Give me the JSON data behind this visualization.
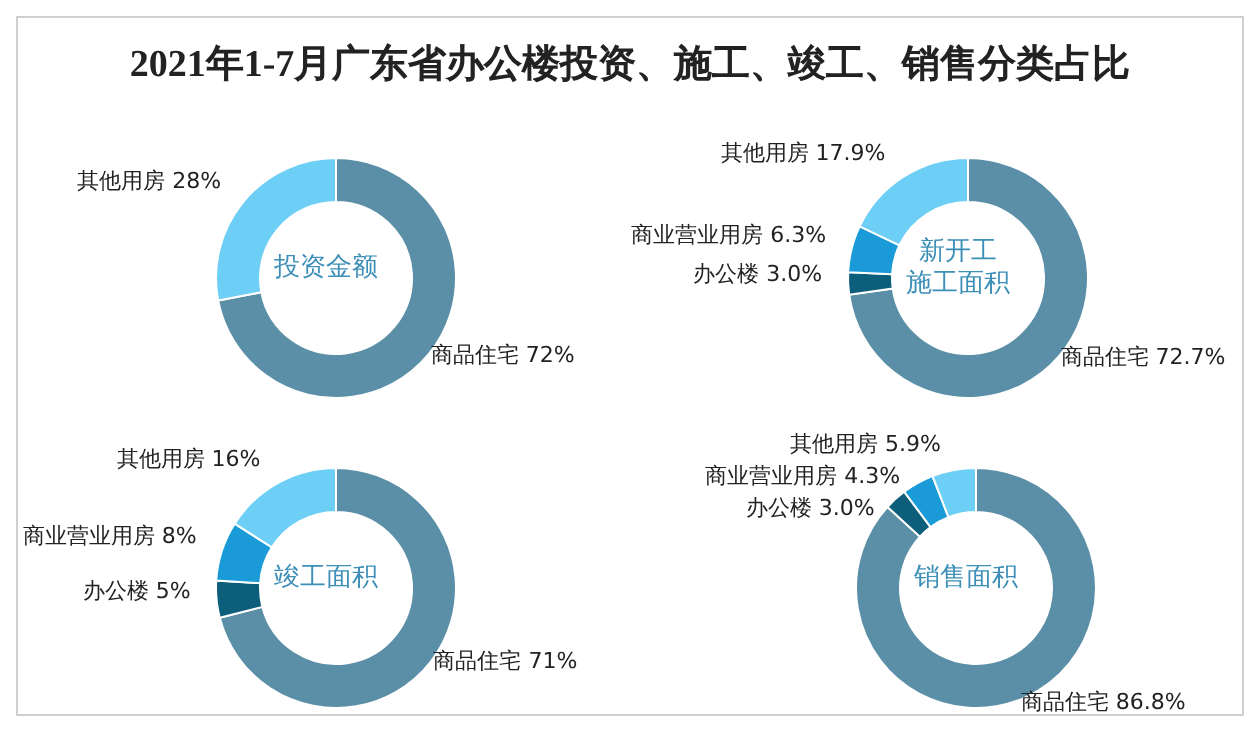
{
  "chart_data": [
    {
      "type": "donut",
      "title": "投资金额",
      "annotations": [
        "2021年1-7月广东省办公楼投资、施工、竣工、销售分类占比"
      ],
      "categories": [
        "商品住宅",
        "其他用房"
      ],
      "values": [
        72,
        28
      ],
      "value_labels": [
        "72%",
        "28%"
      ],
      "colors": [
        "#5b8fa8",
        "#6dcff6"
      ]
    },
    {
      "type": "donut",
      "title": "新开工施工面积",
      "categories": [
        "商品住宅",
        "办公楼",
        "商业营业用房",
        "其他用房"
      ],
      "values": [
        72.7,
        3.0,
        6.3,
        17.9
      ],
      "value_labels": [
        "72.7%",
        "3.0%",
        "6.3%",
        "17.9%"
      ],
      "colors": [
        "#5b8fa8",
        "#0d5e7a",
        "#1a9bd7",
        "#6dcff6"
      ]
    },
    {
      "type": "donut",
      "title": "竣工面积",
      "categories": [
        "商品住宅",
        "办公楼",
        "商业营业用房",
        "其他用房"
      ],
      "values": [
        71,
        5,
        8,
        16
      ],
      "value_labels": [
        "71%",
        "5%",
        "8%",
        "16%"
      ],
      "colors": [
        "#5b8fa8",
        "#0d5e7a",
        "#1a9bd7",
        "#6dcff6"
      ]
    },
    {
      "type": "donut",
      "title": "销售面积",
      "categories": [
        "商品住宅",
        "办公楼",
        "商业营业用房",
        "其他用房"
      ],
      "values": [
        86.8,
        3.0,
        4.3,
        5.9
      ],
      "value_labels": [
        "86.8%",
        "3.0%",
        "4.3%",
        "5.9%"
      ],
      "colors": [
        "#5b8fa8",
        "#0d5e7a",
        "#1a9bd7",
        "#6dcff6"
      ]
    }
  ]
}
